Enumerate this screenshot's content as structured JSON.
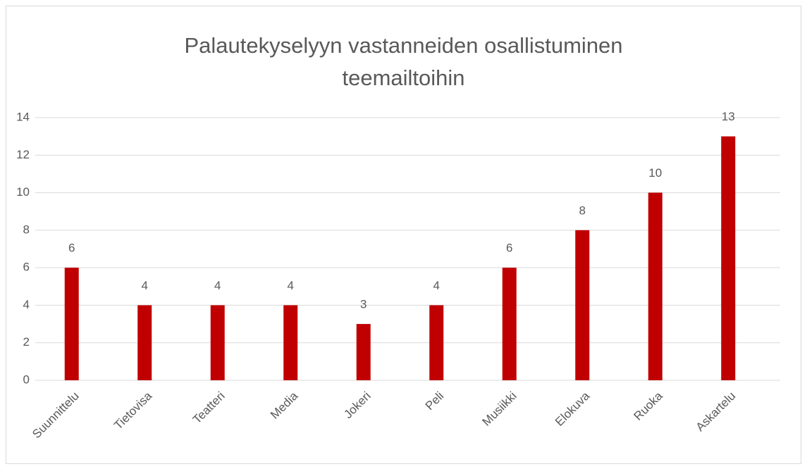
{
  "chart_data": {
    "type": "bar",
    "title": "Palautekyselyyn vastanneiden osallistuminen teemailtoihin",
    "categories": [
      "Suunnittelu",
      "Tietovisa",
      "Teatteri",
      "Media",
      "Jokeri",
      "Peli",
      "Musiikki",
      "Elokuva",
      "Ruoka",
      "Askartelu"
    ],
    "values": [
      6,
      4,
      4,
      4,
      3,
      4,
      6,
      8,
      10,
      13
    ],
    "color": "#c00000",
    "ylim": [
      0,
      14
    ],
    "yticks": [
      0,
      2,
      4,
      6,
      8,
      10,
      12,
      14
    ],
    "grid": true
  }
}
